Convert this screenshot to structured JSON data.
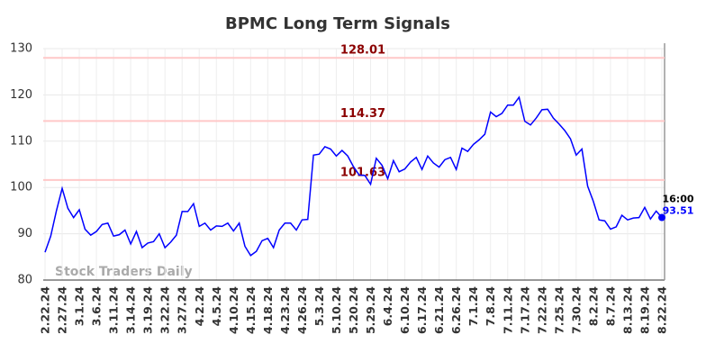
{
  "chart_data": {
    "type": "line",
    "title": "BPMC Long Term Signals",
    "categories": [
      "2.22.24",
      null,
      null,
      "2.27.24",
      null,
      null,
      "3.1.24",
      null,
      null,
      "3.6.24",
      null,
      null,
      "3.11.24",
      null,
      null,
      "3.14.24",
      null,
      null,
      "3.19.24",
      null,
      null,
      "3.22.24",
      null,
      null,
      "3.27.24",
      null,
      null,
      "4.2.24",
      null,
      null,
      "4.5.24",
      null,
      null,
      "4.10.24",
      null,
      null,
      "4.15.24",
      null,
      null,
      "4.18.24",
      null,
      null,
      "4.23.24",
      null,
      null,
      "4.26.24",
      null,
      null,
      "5.3.24",
      null,
      null,
      "5.10.24",
      null,
      null,
      "5.20.24",
      null,
      null,
      "5.29.24",
      null,
      null,
      "6.4.24",
      null,
      null,
      "6.10.24",
      null,
      null,
      "6.17.24",
      null,
      null,
      "6.21.24",
      null,
      null,
      "6.26.24",
      null,
      null,
      "7.1.24",
      null,
      null,
      "7.8.24",
      null,
      null,
      "7.11.24",
      null,
      null,
      "7.17.24",
      null,
      null,
      "7.22.24",
      null,
      null,
      "7.25.24",
      null,
      null,
      "7.30.24",
      null,
      null,
      "8.2.24",
      null,
      null,
      "8.7.24",
      null,
      null,
      "8.13.24",
      null,
      null,
      "8.19.24",
      null,
      null,
      "8.22.24"
    ],
    "values": [
      86,
      89.5,
      95,
      99.8,
      95.5,
      93.5,
      95.2,
      91,
      89.7,
      90.5,
      92,
      92.3,
      89.5,
      89.8,
      90.8,
      87.8,
      90.5,
      87,
      88,
      88.3,
      90,
      87,
      88.2,
      89.7,
      94.8,
      94.8,
      96.5,
      91.6,
      92.3,
      90.8,
      91.7,
      91.6,
      92.3,
      90.6,
      92.3,
      87.3,
      85.3,
      86.2,
      88.5,
      89,
      87,
      90.8,
      92.3,
      92.3,
      90.8,
      93,
      93.1,
      107,
      107.2,
      108.8,
      108.3,
      106.8,
      108,
      106.8,
      104.5,
      102.7,
      102.6,
      100.7,
      106.3,
      104.8,
      101.9,
      105.8,
      103.4,
      104,
      105.5,
      106.5,
      103.9,
      106.8,
      105.3,
      104.4,
      106,
      106.5,
      103.9,
      108.5,
      107.8,
      109.3,
      110.3,
      111.5,
      116.3,
      115.3,
      116,
      117.8,
      117.8,
      119.5,
      114.3,
      113.5,
      115,
      116.8,
      116.9,
      115,
      113.7,
      112.3,
      110.5,
      107,
      108.3,
      100.3,
      97,
      93,
      92.8,
      91,
      91.5,
      94,
      93,
      93.4,
      93.5,
      95.7,
      93.2,
      94.9,
      93.51
    ],
    "color": "#0000ff",
    "ylim": [
      80,
      130
    ],
    "yticks": [
      80,
      90,
      100,
      110,
      120,
      130
    ],
    "grid": true,
    "hlines": [
      128.01,
      114.37,
      101.63
    ],
    "hline_color": "#ffc8c8",
    "hline_label_color": "#8b0000",
    "last_time": "16:00",
    "watermark": "Stock Traders Daily"
  }
}
